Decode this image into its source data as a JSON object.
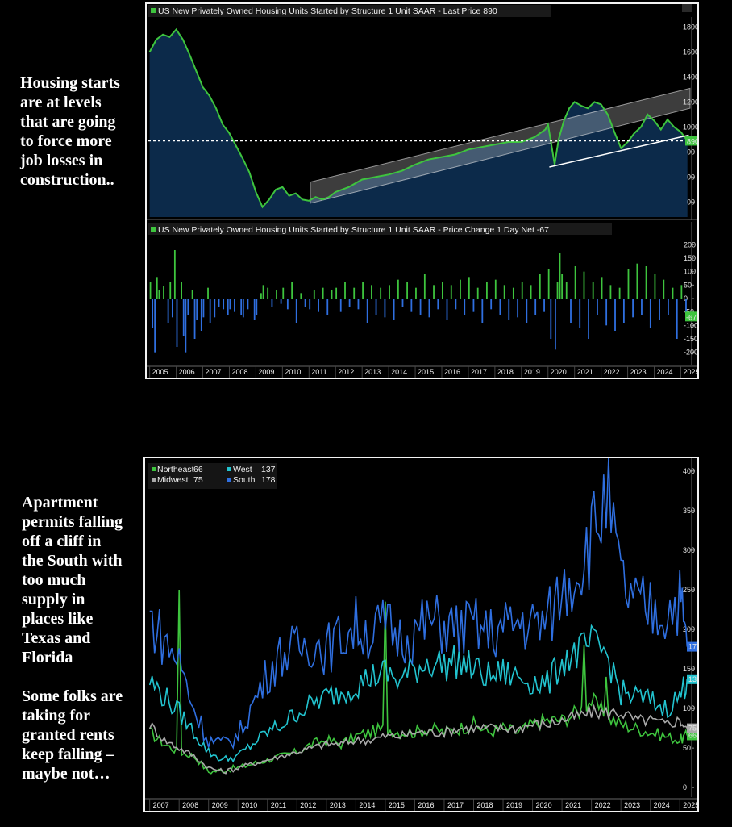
{
  "notes": {
    "top": "Housing starts\nare at levels\nthat are going\nto force more\njob losses in\nconstruction..",
    "bottom": "Apartment\npermits falling\noff a cliff in\nthe South with\ntoo much\nsupply in\nplaces like\nTexas and\nFlorida\n\nSome folks are\ntaking for\ngranted rents\nkeep falling –\nmaybe not…"
  },
  "chart_data": [
    {
      "type": "area",
      "title": "US New Privately Owned Housing Units Started by Structure 1 Unit SAAR - Last Price 890",
      "last_value": 890,
      "last_label": "890",
      "color": "#3ec43e",
      "fill": "#0c2a4a",
      "x_range": [
        2004.95,
        2025.35
      ],
      "ylim": [
        280,
        1880
      ],
      "yticks": [
        400,
        600,
        800,
        1000,
        1200,
        1400,
        1600,
        1800
      ],
      "xticks": [
        "2005",
        "2006",
        "2007",
        "2008",
        "2009",
        "2010",
        "2011",
        "2012",
        "2013",
        "2014",
        "2015",
        "2016",
        "2017",
        "2018",
        "2019",
        "2020",
        "2021",
        "2022",
        "2023",
        "2024",
        "2025"
      ],
      "x": [
        2005.0,
        2005.25,
        2005.5,
        2005.75,
        2006.0,
        2006.25,
        2006.5,
        2006.75,
        2007.0,
        2007.25,
        2007.5,
        2007.75,
        2008.0,
        2008.25,
        2008.5,
        2008.75,
        2009.0,
        2009.25,
        2009.5,
        2009.75,
        2010.0,
        2010.25,
        2010.5,
        2010.75,
        2011.0,
        2011.25,
        2011.5,
        2011.75,
        2012.0,
        2012.5,
        2013.0,
        2013.5,
        2014.0,
        2014.5,
        2015.0,
        2015.5,
        2016.0,
        2016.5,
        2017.0,
        2017.5,
        2018.0,
        2018.5,
        2019.0,
        2019.5,
        2019.9,
        2020.0,
        2020.25,
        2020.4,
        2020.6,
        2020.8,
        2021.0,
        2021.25,
        2021.5,
        2021.75,
        2022.0,
        2022.25,
        2022.5,
        2022.75,
        2023.0,
        2023.25,
        2023.5,
        2023.75,
        2024.0,
        2024.25,
        2024.5,
        2024.75,
        2025.0,
        2025.25
      ],
      "y": [
        1600,
        1700,
        1740,
        1720,
        1780,
        1700,
        1580,
        1450,
        1320,
        1250,
        1150,
        1020,
        950,
        850,
        750,
        640,
        480,
        360,
        420,
        500,
        520,
        450,
        470,
        420,
        410,
        440,
        420,
        440,
        480,
        520,
        580,
        600,
        620,
        650,
        700,
        740,
        760,
        780,
        820,
        840,
        860,
        880,
        880,
        920,
        980,
        1020,
        700,
        900,
        1050,
        1150,
        1200,
        1170,
        1150,
        1200,
        1180,
        1100,
        960,
        830,
        880,
        950,
        1000,
        1100,
        1050,
        980,
        1060,
        1000,
        960,
        890
      ],
      "channel": {
        "x0": 2011.05,
        "x1": 2025.35,
        "lower0": 390,
        "lower1": 1150,
        "upper0": 560,
        "upper1": 1310
      },
      "support": {
        "x0": 2020.05,
        "y0": 680,
        "x1": 2025.3,
        "y1": 935
      },
      "reference_level": 890
    },
    {
      "type": "bar",
      "title": "US New Privately Owned Housing Units Started by Structure 1 Unit SAAR - Price Change 1 Day Net -67",
      "last_value": -67,
      "last_label": "-67",
      "pos_color": "#3ec43e",
      "neg_color": "#2f6fe0",
      "ylim": [
        -240,
        240
      ],
      "yticks": [
        200,
        150,
        100,
        50,
        0,
        -50,
        -100,
        -150,
        -200
      ],
      "ytick_labels": [
        "200",
        "150",
        "100",
        "50",
        "0",
        "-50",
        "-100",
        "-150",
        "-200"
      ],
      "x_range": [
        2004.95,
        2025.35
      ],
      "bars": [
        [
          2005.0,
          60
        ],
        [
          2005.08,
          -110
        ],
        [
          2005.17,
          -200
        ],
        [
          2005.25,
          80
        ],
        [
          2005.33,
          30
        ],
        [
          2005.5,
          45
        ],
        [
          2005.67,
          -90
        ],
        [
          2005.75,
          60
        ],
        [
          2005.83,
          -70
        ],
        [
          2005.92,
          180
        ],
        [
          2006.0,
          -180
        ],
        [
          2006.17,
          60
        ],
        [
          2006.25,
          -140
        ],
        [
          2006.33,
          -200
        ],
        [
          2006.42,
          -60
        ],
        [
          2006.58,
          30
        ],
        [
          2006.67,
          -150
        ],
        [
          2006.75,
          -80
        ],
        [
          2006.92,
          -120
        ],
        [
          2007.0,
          -70
        ],
        [
          2007.17,
          40
        ],
        [
          2007.25,
          -90
        ],
        [
          2007.42,
          -70
        ],
        [
          2007.58,
          -30
        ],
        [
          2007.75,
          -40
        ],
        [
          2007.92,
          -60
        ],
        [
          2008.0,
          -40
        ],
        [
          2008.17,
          -50
        ],
        [
          2008.42,
          -60
        ],
        [
          2008.5,
          -70
        ],
        [
          2008.67,
          -40
        ],
        [
          2008.92,
          -80
        ],
        [
          2009.0,
          -60
        ],
        [
          2009.17,
          20
        ],
        [
          2009.25,
          50
        ],
        [
          2009.42,
          40
        ],
        [
          2009.58,
          -30
        ],
        [
          2009.75,
          30
        ],
        [
          2009.92,
          -20
        ],
        [
          2010.0,
          40
        ],
        [
          2010.17,
          -40
        ],
        [
          2010.33,
          60
        ],
        [
          2010.5,
          -90
        ],
        [
          2010.67,
          20
        ],
        [
          2010.83,
          -30
        ],
        [
          2011.0,
          -40
        ],
        [
          2011.17,
          30
        ],
        [
          2011.33,
          -50
        ],
        [
          2011.5,
          40
        ],
        [
          2011.67,
          -60
        ],
        [
          2011.83,
          30
        ],
        [
          2012.0,
          40
        ],
        [
          2012.17,
          -50
        ],
        [
          2012.33,
          60
        ],
        [
          2012.5,
          -30
        ],
        [
          2012.67,
          40
        ],
        [
          2012.83,
          -40
        ],
        [
          2013.0,
          60
        ],
        [
          2013.17,
          -90
        ],
        [
          2013.33,
          50
        ],
        [
          2013.5,
          -60
        ],
        [
          2013.67,
          40
        ],
        [
          2013.83,
          -70
        ],
        [
          2014.0,
          50
        ],
        [
          2014.17,
          -80
        ],
        [
          2014.33,
          70
        ],
        [
          2014.5,
          -30
        ],
        [
          2014.67,
          60
        ],
        [
          2014.83,
          -50
        ],
        [
          2015.0,
          40
        ],
        [
          2015.17,
          -60
        ],
        [
          2015.33,
          90
        ],
        [
          2015.5,
          -70
        ],
        [
          2015.67,
          50
        ],
        [
          2015.83,
          -40
        ],
        [
          2016.0,
          60
        ],
        [
          2016.17,
          -80
        ],
        [
          2016.33,
          50
        ],
        [
          2016.5,
          -40
        ],
        [
          2016.67,
          70
        ],
        [
          2016.83,
          -60
        ],
        [
          2017.0,
          80
        ],
        [
          2017.17,
          -50
        ],
        [
          2017.33,
          40
        ],
        [
          2017.5,
          -90
        ],
        [
          2017.67,
          60
        ],
        [
          2017.83,
          -40
        ],
        [
          2018.0,
          70
        ],
        [
          2018.17,
          -60
        ],
        [
          2018.33,
          50
        ],
        [
          2018.5,
          -80
        ],
        [
          2018.67,
          40
        ],
        [
          2018.83,
          -70
        ],
        [
          2019.0,
          60
        ],
        [
          2019.17,
          -90
        ],
        [
          2019.33,
          50
        ],
        [
          2019.5,
          -60
        ],
        [
          2019.67,
          90
        ],
        [
          2019.83,
          -50
        ],
        [
          2020.0,
          110
        ],
        [
          2020.08,
          -150
        ],
        [
          2020.25,
          -190
        ],
        [
          2020.33,
          60
        ],
        [
          2020.42,
          170
        ],
        [
          2020.5,
          90
        ],
        [
          2020.67,
          60
        ],
        [
          2020.83,
          -90
        ],
        [
          2021.0,
          120
        ],
        [
          2021.17,
          -110
        ],
        [
          2021.33,
          100
        ],
        [
          2021.5,
          -150
        ],
        [
          2021.67,
          60
        ],
        [
          2021.83,
          -60
        ],
        [
          2022.0,
          80
        ],
        [
          2022.17,
          -100
        ],
        [
          2022.33,
          50
        ],
        [
          2022.5,
          -120
        ],
        [
          2022.67,
          40
        ],
        [
          2022.83,
          -90
        ],
        [
          2023.0,
          110
        ],
        [
          2023.17,
          -70
        ],
        [
          2023.33,
          130
        ],
        [
          2023.5,
          -60
        ],
        [
          2023.67,
          120
        ],
        [
          2023.83,
          -110
        ],
        [
          2024.0,
          90
        ],
        [
          2024.17,
          -80
        ],
        [
          2024.33,
          70
        ],
        [
          2024.5,
          -60
        ],
        [
          2024.67,
          40
        ],
        [
          2024.83,
          -150
        ],
        [
          2025.0,
          50
        ],
        [
          2025.17,
          -67
        ]
      ]
    },
    {
      "type": "line",
      "legend": [
        {
          "name": "Northeast",
          "value": "66",
          "color": "#3ec43e"
        },
        {
          "name": "Midwest",
          "value": "75",
          "color": "#a8a8a8"
        },
        {
          "name": "West",
          "value": "137",
          "color": "#22c4d0"
        },
        {
          "name": "South",
          "value": "178",
          "color": "#2f6fe0"
        }
      ],
      "ylim": [
        -10,
        410
      ],
      "yticks": [
        0,
        50,
        100,
        150,
        200,
        250,
        300,
        350,
        400
      ],
      "x_range": [
        2006.9,
        2025.35
      ],
      "xticks": [
        "2007",
        "2008",
        "2009",
        "2010",
        "2011",
        "2012",
        "2013",
        "2014",
        "2015",
        "2016",
        "2017",
        "2018",
        "2019",
        "2020",
        "2021",
        "2022",
        "2023",
        "2024",
        "2025"
      ],
      "x": [
        2007.0,
        2007.5,
        2008.0,
        2008.5,
        2009.0,
        2009.5,
        2010.0,
        2010.5,
        2011.0,
        2011.5,
        2012.0,
        2012.5,
        2013.0,
        2013.5,
        2014.0,
        2014.5,
        2015.0,
        2015.5,
        2016.0,
        2016.5,
        2017.0,
        2017.5,
        2018.0,
        2018.5,
        2019.0,
        2019.5,
        2020.0,
        2020.5,
        2021.0,
        2021.5,
        2022.0,
        2022.5,
        2023.0,
        2023.5,
        2024.0,
        2024.5,
        2025.0,
        2025.25
      ],
      "series": [
        {
          "name": "Northeast",
          "color": "#3ec43e",
          "values": [
            70,
            55,
            45,
            40,
            20,
            22,
            25,
            30,
            35,
            40,
            45,
            55,
            60,
            55,
            65,
            70,
            75,
            70,
            70,
            75,
            70,
            75,
            80,
            70,
            75,
            70,
            80,
            85,
            85,
            95,
            110,
            90,
            80,
            75,
            70,
            65,
            60,
            66
          ],
          "spikes": [
            [
              2008.0,
              250
            ],
            [
              2015.0,
              235
            ],
            [
              2021.75,
              180
            ],
            [
              2022.5,
              140
            ]
          ]
        },
        {
          "name": "Midwest",
          "color": "#a8a8a8",
          "values": [
            80,
            60,
            50,
            40,
            25,
            20,
            25,
            30,
            35,
            40,
            45,
            50,
            55,
            55,
            60,
            60,
            65,
            65,
            70,
            70,
            70,
            75,
            75,
            75,
            75,
            75,
            80,
            80,
            85,
            90,
            95,
            95,
            95,
            85,
            85,
            80,
            85,
            75
          ]
        },
        {
          "name": "West",
          "color": "#22c4d0",
          "values": [
            135,
            115,
            95,
            70,
            45,
            35,
            40,
            55,
            70,
            80,
            95,
            105,
            115,
            120,
            130,
            140,
            145,
            135,
            150,
            160,
            155,
            160,
            150,
            140,
            145,
            140,
            135,
            130,
            160,
            170,
            180,
            170,
            120,
            115,
            110,
            100,
            115,
            137
          ]
        },
        {
          "name": "South",
          "color": "#2f6fe0",
          "values": [
            215,
            185,
            160,
            100,
            60,
            55,
            65,
            105,
            145,
            170,
            175,
            185,
            175,
            190,
            205,
            195,
            205,
            190,
            195,
            210,
            205,
            200,
            205,
            195,
            200,
            210,
            205,
            210,
            250,
            275,
            315,
            370,
            260,
            230,
            225,
            220,
            240,
            178
          ]
        }
      ]
    }
  ]
}
